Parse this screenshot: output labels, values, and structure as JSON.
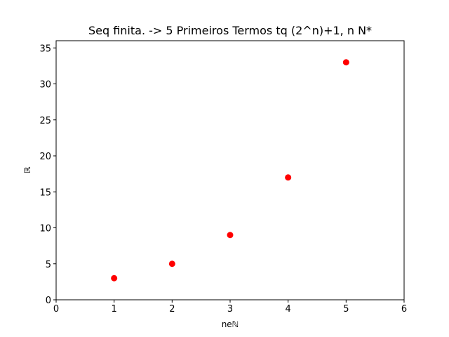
{
  "chart_data": {
    "type": "scatter",
    "title": "Seq finita. -> 5 Primeiros Termos tq (2^n)+1, n N*",
    "xlabel": "neℕ",
    "ylabel": "ℝ",
    "x": [
      1,
      2,
      3,
      4,
      5
    ],
    "y": [
      3,
      5,
      9,
      17,
      33
    ],
    "xlim": [
      0,
      6
    ],
    "ylim": [
      0,
      36
    ],
    "xticks": [
      0,
      1,
      2,
      3,
      4,
      5,
      6
    ],
    "yticks": [
      0,
      5,
      10,
      15,
      20,
      25,
      30,
      35
    ],
    "grid": false,
    "legend": "none",
    "marker_color": "#ff0000"
  }
}
